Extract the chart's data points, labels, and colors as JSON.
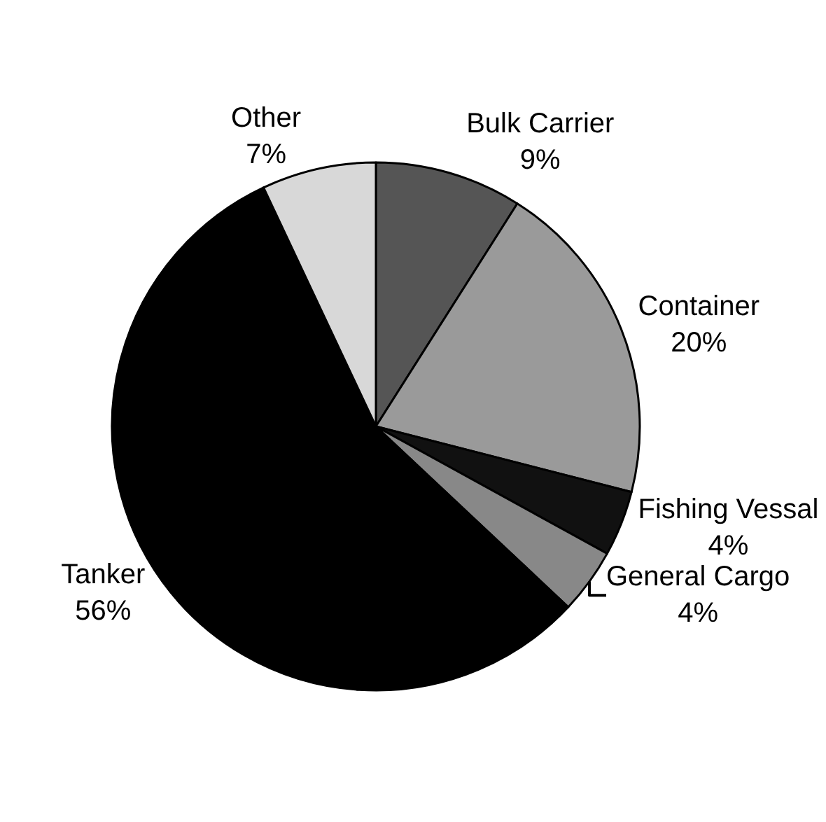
{
  "chart_data": {
    "type": "pie",
    "categories": [
      "Bulk Carrier",
      "Container",
      "Fishing Vessal",
      "General Cargo",
      "Tanker",
      "Other"
    ],
    "values": [
      9,
      20,
      4,
      4,
      56,
      7
    ],
    "value_labels": [
      "9%",
      "20%",
      "4%",
      "4%",
      "56%",
      "7%"
    ],
    "colors": [
      "#555555",
      "#9a9a9a",
      "#111111",
      "#888888",
      "#000000",
      "#d8d8d8"
    ],
    "legend": false
  }
}
